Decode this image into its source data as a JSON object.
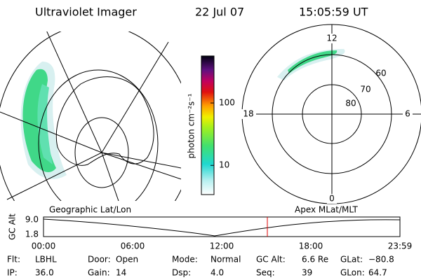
{
  "header": {
    "title": "Ultraviolet Imager",
    "date": "22 Jul 07",
    "time": "15:05:59 UT"
  },
  "left_panel": {
    "label": "Geographic Lat/Lon"
  },
  "colorbar": {
    "label": "photon cm⁻²s⁻¹",
    "scale": "log",
    "lim": [
      3.4,
      566
    ],
    "ticks": [
      10,
      100
    ]
  },
  "polar": {
    "label": "Apex MLat/MLT",
    "mlt_labels": [
      "12",
      "18",
      "6",
      "0"
    ],
    "lat_labels": [
      "60",
      "70",
      "80"
    ]
  },
  "altitude_plot": {
    "ylabel": "GC Alt",
    "yticks": [
      "9.0",
      "1.8"
    ],
    "xticks": [
      "00:00",
      "06:00",
      "12:00",
      "18:00",
      "23:59"
    ]
  },
  "info": [
    [
      {
        "label": "Flt:",
        "value": "LBHL"
      },
      {
        "label": "Door:",
        "value": "Open"
      },
      {
        "label": "Mode:",
        "value": "Normal"
      },
      {
        "label": "GC Alt:",
        "value": "6.6 Re"
      },
      {
        "label": "GLat:",
        "value": "−80.8"
      }
    ],
    [
      {
        "label": "IP:",
        "value": "36.0"
      },
      {
        "label": "Gain:",
        "value": "14"
      },
      {
        "label": "Dsp:",
        "value": "4.0"
      },
      {
        "label": "Seq:",
        "value": "39"
      },
      {
        "label": "GLon:",
        "value": "64.7"
      }
    ]
  ]
}
